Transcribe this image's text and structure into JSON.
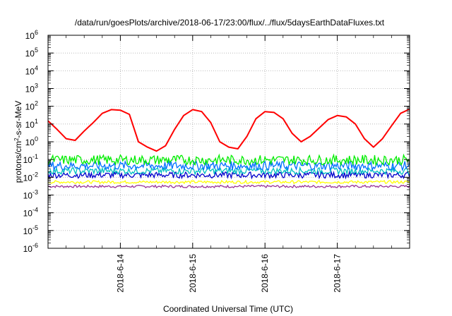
{
  "chart_data": {
    "type": "line",
    "title": "/data/run/goesPlots/archive/2018-06-17/23:00/flux/../flux/5daysEarthDataFluxes.txt",
    "xlabel": "Coordinated Universal Time (UTC)",
    "ylabel": "protons/cm²-s-sr-MeV",
    "y_scale": "log",
    "ylim": [
      1e-06,
      1000000.0
    ],
    "xlim": [
      "2018-06-13T00:00",
      "2018-06-18T00:00"
    ],
    "grid": true,
    "legend": "none",
    "y_ticks": [
      {
        "base": "10",
        "exp": "-6"
      },
      {
        "base": "10",
        "exp": "-5"
      },
      {
        "base": "10",
        "exp": "-4"
      },
      {
        "base": "10",
        "exp": "-3"
      },
      {
        "base": "10",
        "exp": "-2"
      },
      {
        "base": "10",
        "exp": "-1"
      },
      {
        "base": "10",
        "exp": "0"
      },
      {
        "base": "10",
        "exp": "1"
      },
      {
        "base": "10",
        "exp": "2"
      },
      {
        "base": "10",
        "exp": "3"
      },
      {
        "base": "10",
        "exp": "4"
      },
      {
        "base": "10",
        "exp": "5"
      },
      {
        "base": "10",
        "exp": "6"
      }
    ],
    "x_ticks": [
      "2018-6-14",
      "2018-6-15",
      "2018-6-16",
      "2018-6-17"
    ],
    "series": [
      {
        "color": "#ff0000",
        "x": [
          "2018-06-13T00:00",
          "2018-06-13T03:00",
          "2018-06-13T06:00",
          "2018-06-13T09:00",
          "2018-06-13T12:00",
          "2018-06-13T15:00",
          "2018-06-13T18:00",
          "2018-06-13T21:00",
          "2018-06-14T00:00",
          "2018-06-14T03:00",
          "2018-06-14T06:00",
          "2018-06-14T09:00",
          "2018-06-14T12:00",
          "2018-06-14T15:00",
          "2018-06-14T18:00",
          "2018-06-14T21:00",
          "2018-06-15T00:00",
          "2018-06-15T03:00",
          "2018-06-15T06:00",
          "2018-06-15T09:00",
          "2018-06-15T12:00",
          "2018-06-15T15:00",
          "2018-06-15T18:00",
          "2018-06-15T21:00",
          "2018-06-16T00:00",
          "2018-06-16T03:00",
          "2018-06-16T06:00",
          "2018-06-16T09:00",
          "2018-06-16T12:00",
          "2018-06-16T15:00",
          "2018-06-16T18:00",
          "2018-06-16T21:00",
          "2018-06-17T00:00",
          "2018-06-17T03:00",
          "2018-06-17T06:00",
          "2018-06-17T09:00",
          "2018-06-17T12:00",
          "2018-06-17T15:00",
          "2018-06-17T18:00",
          "2018-06-17T21:00",
          "2018-06-18T00:00"
        ],
        "values": [
          15,
          5,
          1.5,
          1.2,
          4,
          12,
          40,
          65,
          60,
          35,
          1.0,
          0.5,
          0.3,
          0.6,
          5,
          30,
          65,
          50,
          12,
          1.0,
          0.5,
          0.4,
          2,
          20,
          50,
          45,
          20,
          3,
          1.0,
          2,
          6,
          18,
          30,
          25,
          10,
          1.5,
          0.5,
          1.5,
          8,
          40,
          70
        ]
      },
      {
        "color": "#00ee00",
        "band": [
          0.05,
          0.18
        ]
      },
      {
        "color": "#0070ff",
        "band": [
          0.025,
          0.08
        ]
      },
      {
        "color": "#00c0c0",
        "band": [
          0.015,
          0.035
        ]
      },
      {
        "color": "#0000cc",
        "band": [
          0.009,
          0.02
        ]
      },
      {
        "color": "#ffff00",
        "band": [
          0.0045,
          0.0065
        ]
      },
      {
        "color": "#993399",
        "band": [
          0.0026,
          0.0036
        ]
      }
    ]
  }
}
